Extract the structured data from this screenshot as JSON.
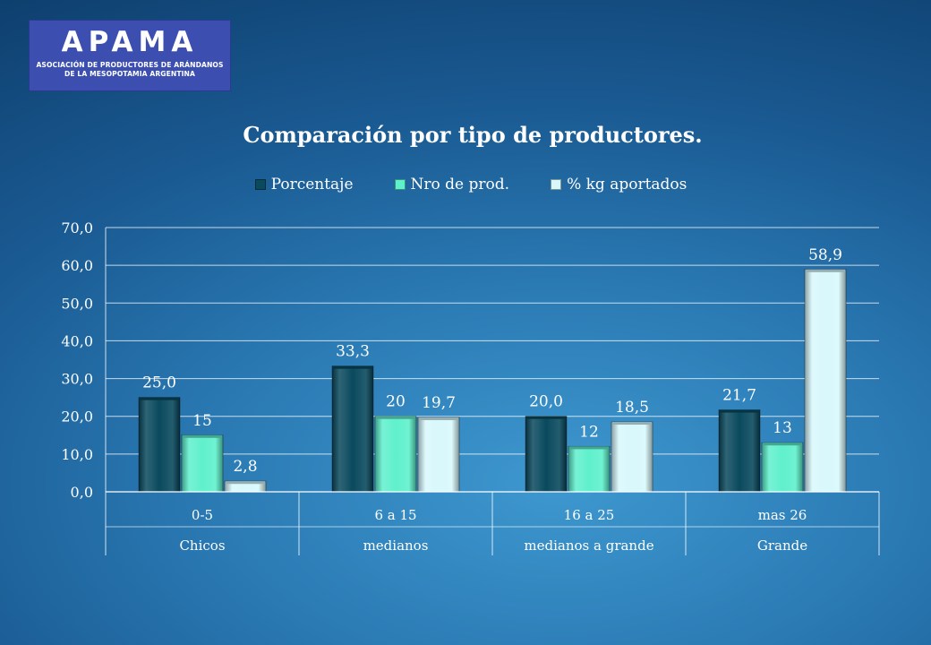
{
  "logo": {
    "wordmark": "APAMA",
    "line1": "ASOCIACIÓN DE PRODUCTORES DE ARÁNDANOS",
    "line2": "DE LA MESOPOTAMIA ARGENTINA"
  },
  "chart_data": {
    "type": "bar",
    "title": "Comparación por tipo de productores.",
    "categories": [
      "0-5",
      "6 a 15",
      "16 a 25",
      "mas 26"
    ],
    "category_groups": [
      "Chicos",
      "medianos",
      "medianos a grande",
      "Grande"
    ],
    "series": [
      {
        "name": "Porcentaje",
        "color": "#0a4a5e",
        "values": [
          25.0,
          33.3,
          20.0,
          21.7
        ],
        "labels": [
          "25,0",
          "33,3",
          "20,0",
          "21,7"
        ]
      },
      {
        "name": "Nro de prod.",
        "color": "#5ff0cc",
        "values": [
          15,
          20,
          12,
          13
        ],
        "labels": [
          "15",
          "20",
          "12",
          "13"
        ]
      },
      {
        "name": "% kg aportados",
        "color": "#d8f8fc",
        "values": [
          2.8,
          19.7,
          18.5,
          58.9
        ],
        "labels": [
          "2,8",
          "19,7",
          "18,5",
          "58,9"
        ]
      }
    ],
    "y_ticks": [
      "0,0",
      "10,0",
      "20,0",
      "30,0",
      "40,0",
      "50,0",
      "60,0",
      "70,0"
    ],
    "ylim": [
      0,
      70
    ],
    "grid": true,
    "legend": "top"
  }
}
